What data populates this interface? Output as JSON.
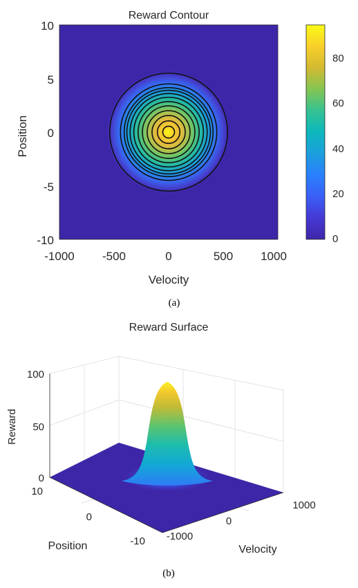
{
  "chart_data": [
    {
      "type": "heatmap",
      "title": "Reward Contour",
      "xlabel": "Velocity",
      "ylabel": "Position",
      "xlim": [
        -1000,
        1000
      ],
      "ylim": [
        -10,
        10
      ],
      "xticks": [
        "-1000",
        "-500",
        "0",
        "500",
        "1000"
      ],
      "yticks": [
        "10",
        "5",
        "0",
        "-5",
        "-10"
      ],
      "peak": {
        "x": 0,
        "y": 0,
        "value": 95
      },
      "contour_radii_position_units": [
        0.55,
        1.05,
        1.55,
        2.0,
        2.45,
        2.85,
        3.25,
        3.6,
        3.9,
        4.15,
        4.5,
        5.5
      ],
      "colorbar": {
        "ticks": [
          "0",
          "20",
          "40",
          "60",
          "80"
        ],
        "range": [
          0,
          95
        ],
        "colormap": "parula"
      },
      "caption": "(a)"
    },
    {
      "type": "surface",
      "title": "Reward Surface",
      "xlabel": "Velocity",
      "ylabel": "Position",
      "zlabel": "Reward",
      "zticks": [
        "100",
        "50",
        "0"
      ],
      "yticks": [
        "10",
        "0",
        "-10"
      ],
      "xticks": [
        "-1000",
        "0",
        "1000"
      ],
      "zlim": [
        0,
        100
      ],
      "peak": {
        "x": 0,
        "y": 0,
        "value": 95
      },
      "colormap": "parula",
      "caption": "(b)"
    }
  ],
  "colors": {
    "parula_low": "#3e26a8",
    "parula_high": "#f9fb15",
    "grid": "#e6e6e6",
    "axis_text": "#262626"
  }
}
